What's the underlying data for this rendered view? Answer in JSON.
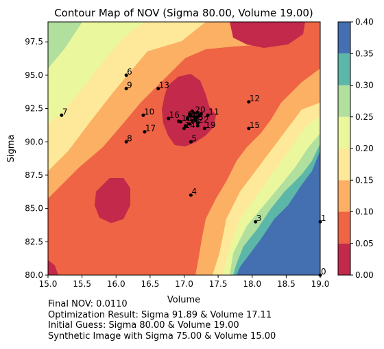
{
  "chart_data": {
    "type": "contour",
    "title": "Contour Map of NOV (Sigma 80.00, Volume 19.00)",
    "xlabel": "Volume",
    "ylabel": "Sigma",
    "xlim": [
      15.0,
      19.0
    ],
    "ylim": [
      80.0,
      99.0
    ],
    "x_ticks": [
      "15.0",
      "15.5",
      "16.0",
      "16.5",
      "17.0",
      "17.5",
      "18.0",
      "18.5",
      "19.0"
    ],
    "y_ticks": [
      "80.0",
      "82.5",
      "85.0",
      "87.5",
      "90.0",
      "92.5",
      "95.0",
      "97.5"
    ],
    "colorbar": {
      "ticks": [
        "0.00",
        "0.05",
        "0.10",
        "0.15",
        "0.20",
        "0.25",
        "0.30",
        "0.35",
        "0.40"
      ],
      "levels": [
        0.0,
        0.05,
        0.1,
        0.15,
        0.2,
        0.25,
        0.3,
        0.35,
        0.4
      ],
      "colors": [
        "#c2294a",
        "#ee6445",
        "#fbb064",
        "#fde999",
        "#eaf79d",
        "#b1df9e",
        "#5db7a8",
        "#4470b1"
      ]
    },
    "points": [
      {
        "label": "0",
        "x": 19.0,
        "y": 80.0
      },
      {
        "label": "1",
        "x": 19.0,
        "y": 84.0
      },
      {
        "label": "2",
        "x": 17.05,
        "y": 91.8
      },
      {
        "label": "3",
        "x": 18.05,
        "y": 84.0
      },
      {
        "label": "4",
        "x": 17.1,
        "y": 86.0
      },
      {
        "label": "5",
        "x": 17.1,
        "y": 90.0
      },
      {
        "label": "6",
        "x": 16.15,
        "y": 95.0
      },
      {
        "label": "7",
        "x": 15.2,
        "y": 92.0
      },
      {
        "label": "8",
        "x": 16.15,
        "y": 90.0
      },
      {
        "label": "9",
        "x": 16.15,
        "y": 94.0
      },
      {
        "label": "10",
        "x": 16.4,
        "y": 92.0
      },
      {
        "label": "11",
        "x": 17.35,
        "y": 92.0
      },
      {
        "label": "12",
        "x": 17.95,
        "y": 93.0
      },
      {
        "label": "13",
        "x": 16.62,
        "y": 94.0
      },
      {
        "label": "14",
        "x": 17.0,
        "y": 91.0
      },
      {
        "label": "15",
        "x": 17.95,
        "y": 91.0
      },
      {
        "label": "16",
        "x": 16.77,
        "y": 91.75
      },
      {
        "label": "17",
        "x": 16.42,
        "y": 90.75
      },
      {
        "label": "18",
        "x": 16.95,
        "y": 91.5
      },
      {
        "label": "19",
        "x": 17.3,
        "y": 91.0
      },
      {
        "label": "20",
        "x": 17.15,
        "y": 92.15
      },
      {
        "label": "21",
        "x": 17.08,
        "y": 91.35
      },
      {
        "label": "22",
        "x": 17.2,
        "y": 91.4
      },
      {
        "label": "23",
        "x": 17.12,
        "y": 91.6
      }
    ],
    "cluster_points": [
      [
        17.1,
        92.0
      ],
      [
        17.2,
        92.2
      ],
      [
        17.15,
        91.9
      ],
      [
        17.25,
        92.1
      ],
      [
        17.05,
        91.7
      ],
      [
        17.18,
        91.8
      ],
      [
        17.12,
        92.3
      ],
      [
        17.22,
        91.95
      ],
      [
        17.08,
        92.1
      ],
      [
        17.17,
        91.6
      ],
      [
        16.92,
        91.55
      ],
      [
        17.02,
        91.2
      ],
      [
        17.2,
        91.2
      ]
    ]
  },
  "notes": {
    "final_nov": "Final NOV: 0.0110",
    "optimization": "Optimization Result: Sigma 91.89 & Volume 17.11",
    "initial_guess": "Initial Guess: Sigma 80.00 & Volume 19.00",
    "synthetic": "Synthetic Image with Sigma 75.00 & Volume 15.00"
  }
}
